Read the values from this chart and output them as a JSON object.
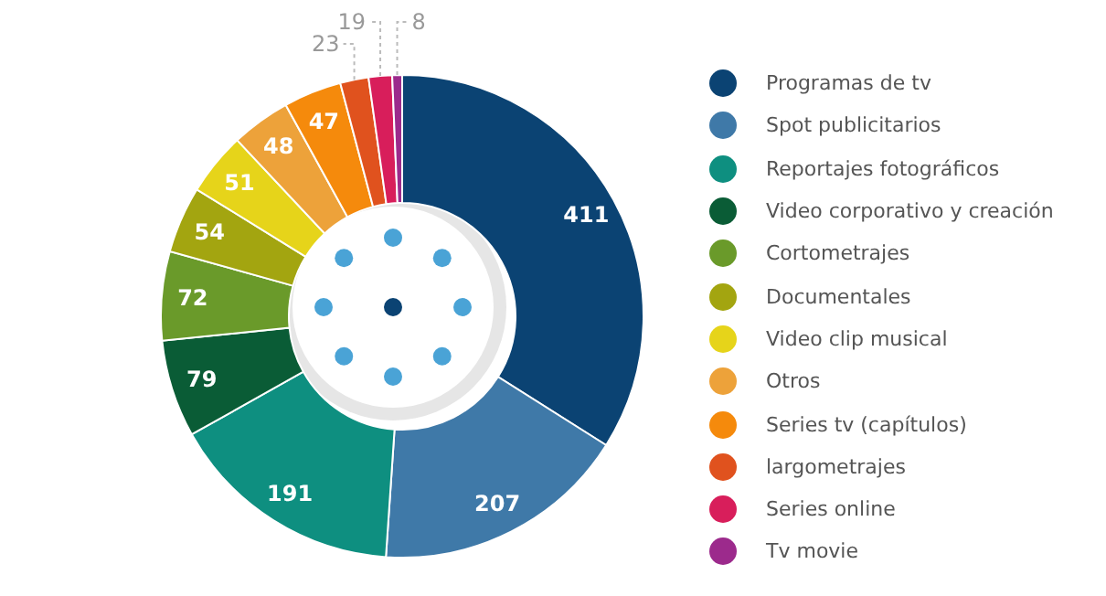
{
  "chart_data": {
    "type": "donut",
    "categories": [
      "Programas de tv",
      "Spot publicitarios",
      "Reportajes fotográficos",
      "Video corporativo y creación",
      "Cortometrajes",
      "Documentales",
      "Video clip musical",
      "Otros",
      "Series tv (capítulos)",
      "largometrajes",
      "Series online",
      "Tv movie"
    ],
    "values": [
      411,
      207,
      191,
      79,
      72,
      54,
      51,
      48,
      47,
      23,
      19,
      8
    ],
    "colors": [
      "#0b4373",
      "#3f79a8",
      "#0e8f80",
      "#0a5c36",
      "#6a9a2a",
      "#a3a510",
      "#e6d41a",
      "#eda23a",
      "#f58a0c",
      "#e0521e",
      "#d81e5b",
      "#9c2a8c"
    ],
    "data_labels": true,
    "legend": "right"
  }
}
